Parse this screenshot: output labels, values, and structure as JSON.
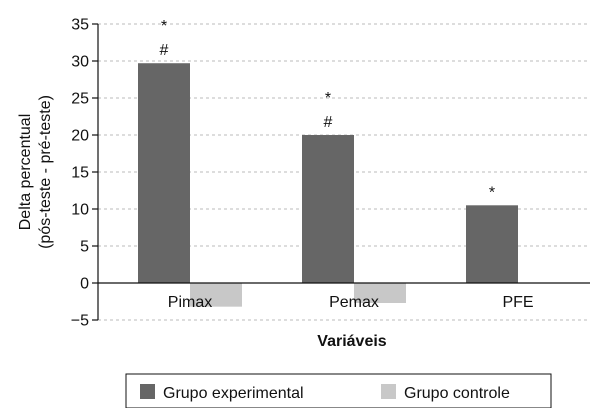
{
  "chart_data": {
    "type": "bar",
    "categories": [
      "Pimax",
      "Pemax",
      "PFE"
    ],
    "series": [
      {
        "name": "Grupo experimental",
        "values": [
          29.7,
          20.0,
          10.5
        ],
        "color": "#666666"
      },
      {
        "name": "Grupo controle",
        "values": [
          -3.2,
          -2.7,
          0
        ],
        "color": "#c8c8c8"
      }
    ],
    "annotations": [
      {
        "category": "Pimax",
        "series": 0,
        "symbols": [
          "*",
          "#"
        ]
      },
      {
        "category": "Pemax",
        "series": 0,
        "symbols": [
          "*",
          "#"
        ]
      },
      {
        "category": "PFE",
        "series": 0,
        "symbols": [
          "*"
        ]
      }
    ],
    "ylabel_lines": [
      "Delta percentual",
      "(pós-teste - pré-teste)"
    ],
    "xlabel": "Variáveis",
    "ylim": [
      -5,
      35
    ],
    "yticks": [
      -5,
      0,
      5,
      10,
      15,
      20,
      25,
      30,
      35
    ],
    "ytick_labels": [
      "−5",
      "0",
      "5",
      "10",
      "15",
      "20",
      "25",
      "30",
      "35"
    ],
    "grid": "horizontal-dashed",
    "legend_position": "bottom"
  }
}
